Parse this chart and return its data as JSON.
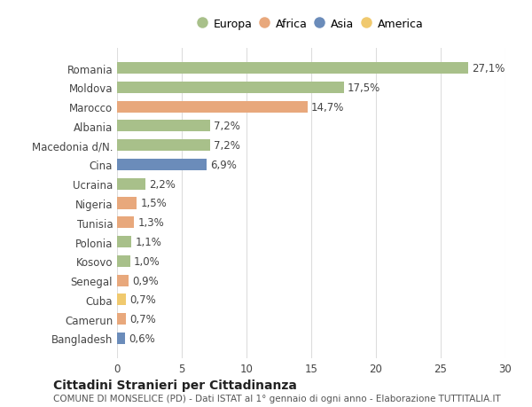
{
  "categories": [
    "Romania",
    "Moldova",
    "Marocco",
    "Albania",
    "Macedonia d/N.",
    "Cina",
    "Ucraina",
    "Nigeria",
    "Tunisia",
    "Polonia",
    "Kosovo",
    "Senegal",
    "Cuba",
    "Camerun",
    "Bangladesh"
  ],
  "values": [
    27.1,
    17.5,
    14.7,
    7.2,
    7.2,
    6.9,
    2.2,
    1.5,
    1.3,
    1.1,
    1.0,
    0.9,
    0.7,
    0.7,
    0.6
  ],
  "labels": [
    "27,1%",
    "17,5%",
    "14,7%",
    "7,2%",
    "7,2%",
    "6,9%",
    "2,2%",
    "1,5%",
    "1,3%",
    "1,1%",
    "1,0%",
    "0,9%",
    "0,7%",
    "0,7%",
    "0,6%"
  ],
  "continents": [
    "Europa",
    "Europa",
    "Africa",
    "Europa",
    "Europa",
    "Asia",
    "Europa",
    "Africa",
    "Africa",
    "Europa",
    "Europa",
    "Africa",
    "America",
    "Africa",
    "Asia"
  ],
  "colors": {
    "Europa": "#a8c08a",
    "Africa": "#e8a87c",
    "Asia": "#6b8cba",
    "America": "#f0c96e"
  },
  "legend_order": [
    "Europa",
    "Africa",
    "Asia",
    "America"
  ],
  "xlim": [
    0,
    30
  ],
  "xticks": [
    0,
    5,
    10,
    15,
    20,
    25,
    30
  ],
  "title": "Cittadini Stranieri per Cittadinanza",
  "subtitle": "COMUNE DI MONSELICE (PD) - Dati ISTAT al 1° gennaio di ogni anno - Elaborazione TUTTITALIA.IT",
  "bg_color": "#ffffff",
  "grid_color": "#dddddd",
  "bar_height": 0.6,
  "label_fontsize": 8.5,
  "tick_fontsize": 8.5,
  "title_fontsize": 10,
  "subtitle_fontsize": 7.5
}
